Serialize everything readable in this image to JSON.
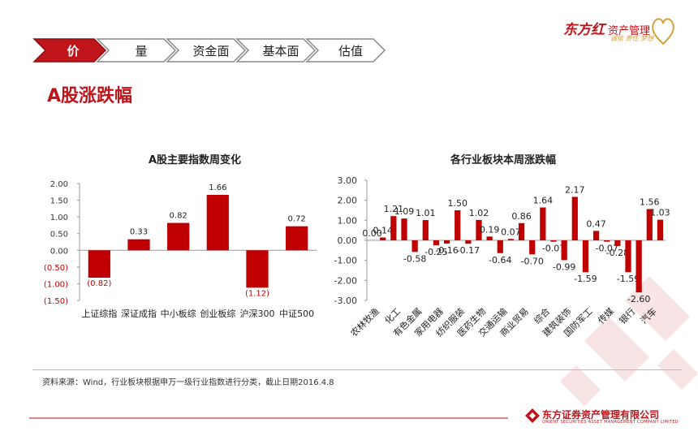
{
  "tabs": [
    {
      "label": "价",
      "active": true
    },
    {
      "label": "量",
      "active": false
    },
    {
      "label": "资金面",
      "active": false
    },
    {
      "label": "基本面",
      "active": false
    },
    {
      "label": "估值",
      "active": false
    }
  ],
  "page_title": "A股涨跌幅",
  "brand": {
    "name": "东方红",
    "sub": "资产管理",
    "slogan": "诚信 责任 梦想"
  },
  "source_note": "资料来源：Wind，行业板块根据申万一级行业指数进行分类，截止日期2016.4.8",
  "company": {
    "name_cn": "东方证券资产管理有限公司",
    "name_en": "ORIENT SECURITIES ASSET MANAGEMENT COMPANY LIMITED"
  },
  "colors": {
    "accent": "#c00000",
    "brand": "#c0141b"
  },
  "chart_data": [
    {
      "type": "bar",
      "title": "A股主要指数周变化",
      "categories": [
        "上证综指",
        "深证成指",
        "中小板综",
        "创业板综",
        "沪深300",
        "中证500"
      ],
      "values": [
        -0.82,
        0.33,
        0.82,
        1.66,
        -1.12,
        0.72
      ],
      "value_labels": [
        "(0.82)",
        "0.33",
        "0.82",
        "1.66",
        "(1.12)",
        "0.72"
      ],
      "ylim": [
        -1.5,
        2.0
      ],
      "yticks": [
        2.0,
        1.5,
        1.0,
        0.5,
        0.0,
        -0.5,
        -1.0,
        -1.5
      ],
      "ytick_labels": [
        "2.00",
        "1.50",
        "1.00",
        "0.50",
        "0.00",
        "(0.50)",
        "(1.00)",
        "(1.50)"
      ],
      "xlabel": "",
      "ylabel": "",
      "grid": false
    },
    {
      "type": "bar",
      "title": "各行业板块本周涨跌幅",
      "categories": [
        "农林牧渔",
        "化工",
        "有色金属",
        "家用电器",
        "纺织服装",
        "医药生物",
        "交通运输",
        "商业贸易",
        "综合",
        "建筑装饰",
        "国防军工",
        "传媒",
        "银行",
        "汽车"
      ],
      "bars": [
        0.0,
        0.14,
        1.21,
        1.09,
        -0.58,
        1.01,
        -0.25,
        -0.16,
        1.5,
        -0.17,
        1.02,
        0.19,
        -0.64,
        0.07,
        0.86,
        -0.7,
        1.64,
        -0.07,
        -0.99,
        2.17,
        -1.59,
        0.47,
        -0.07,
        -0.28,
        -1.59,
        -2.6,
        1.56,
        1.03
      ],
      "value_labels": [
        "0.00",
        "0.14",
        "1.21",
        "1.09",
        "-0.58",
        "1.01",
        "-0.25",
        "-0.16",
        "1.50",
        "-0.17",
        "1.02",
        "0.19",
        "-0.64",
        "0.07",
        "0.86",
        "-0.70",
        "1.64",
        "-0.07",
        "-0.99",
        "2.17",
        "-1.59",
        "0.47",
        "-0.07",
        "-0.28",
        "-1.59",
        "-2.60",
        "1.56",
        "1.03"
      ],
      "ylim": [
        -3.0,
        3.0
      ],
      "yticks": [
        3.0,
        2.0,
        1.0,
        0.0,
        -1.0,
        -2.0,
        -3.0
      ],
      "ytick_labels": [
        "3.00",
        "2.00",
        "1.00",
        "0.00",
        "-1.00",
        "-2.00",
        "-3.00"
      ],
      "xlabel": "",
      "ylabel": "",
      "grid": false
    }
  ]
}
